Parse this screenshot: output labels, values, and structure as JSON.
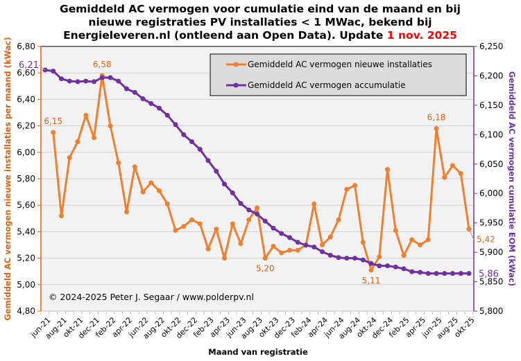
{
  "chart_data": {
    "type": "line",
    "title_lines": [
      "Gemiddeld  AC vermogen voor cumulatie  eind van de maand  en bij",
      "nieuwe registraties  PV installaties  < 1 MWac, bekend bij",
      "Energieleveren.nl  (ontleend aan Open Data). Update "
    ],
    "title_highlight": "1 nov. 2025",
    "xlabel": "Maand van registratie",
    "ylabel_left": "Gemiddeld AC vermogen nieuwe installaties per maand (kWac)",
    "ylabel_right": "Gemiddeld AC vermogen cumulatie EOM (kWac)",
    "ylim_left": [
      4.8,
      6.8
    ],
    "ylim_right": [
      5800,
      6250
    ],
    "yticks_left": [
      "4,80",
      "5,00",
      "5,20",
      "5,40",
      "5,60",
      "5,80",
      "6,00",
      "6,20",
      "6,40",
      "6,60",
      "6,80"
    ],
    "yticks_right": [
      "5,800",
      "5,850",
      "5,900",
      "5,950",
      "6,000",
      "6,050",
      "6,100",
      "6,150",
      "6,200",
      "6,250"
    ],
    "x_tick_labels": [
      "jun-21",
      "aug-21",
      "okt-21",
      "dec-21",
      "feb-22",
      "apr-22",
      "jun-22",
      "aug-22",
      "okt-22",
      "dec-22",
      "feb-23",
      "apr-23",
      "jun-23",
      "aug-23",
      "okt-23",
      "dec-23",
      "feb-24",
      "apr-24",
      "jun-24",
      "aug-24",
      "okt-24",
      "dec-24",
      "feb-25",
      "apr-25",
      "jun-25",
      "aug-25",
      "okt-25"
    ],
    "grid": true,
    "legend_position": "top-right",
    "copyright": "© 2024-2025  Peter J. Segaar / www.polderpv.nl",
    "series": [
      {
        "name": "Gemiddeld AC vermogen nieuwe installaties",
        "axis": "left",
        "color": "#f08030",
        "start_month_index": 1,
        "values": [
          6.15,
          5.52,
          5.96,
          6.08,
          6.28,
          6.11,
          6.58,
          6.2,
          5.92,
          5.55,
          5.89,
          5.7,
          5.77,
          5.71,
          5.61,
          5.41,
          5.44,
          5.49,
          5.46,
          5.27,
          5.42,
          5.2,
          5.46,
          5.31,
          5.49,
          5.58,
          5.2,
          5.29,
          5.24,
          5.26,
          5.26,
          5.3,
          5.61,
          5.3,
          5.36,
          5.49,
          5.72,
          5.75,
          5.32,
          5.11,
          5.21,
          5.87,
          5.41,
          5.22,
          5.34,
          5.3,
          5.34,
          6.18,
          5.81,
          5.9,
          5.84,
          5.42
        ],
        "annotations": [
          {
            "index": 0,
            "text": "6,15"
          },
          {
            "index": 6,
            "text": "6,58"
          },
          {
            "index": 26,
            "text": "5,20"
          },
          {
            "index": 39,
            "text": "5,11"
          },
          {
            "index": 47,
            "text": "6,18"
          },
          {
            "index": 51,
            "text": "5,42"
          }
        ]
      },
      {
        "name": "Gemiddeld AC vermogen accumulatie",
        "axis": "right",
        "color": "#7030a0",
        "start_month_index": 0,
        "values": [
          6210,
          6208,
          6195,
          6191,
          6190,
          6191,
          6190,
          6197,
          6197,
          6191,
          6178,
          6172,
          6161,
          6153,
          6145,
          6133,
          6117,
          6100,
          6088,
          6075,
          6056,
          6038,
          6016,
          6001,
          5983,
          5972,
          5965,
          5953,
          5941,
          5932,
          5925,
          5917,
          5912,
          5909,
          5901,
          5895,
          5891,
          5890,
          5890,
          5887,
          5881,
          5877,
          5877,
          5875,
          5872,
          5867,
          5866,
          5864,
          5864,
          5864,
          5864,
          5864,
          5864
        ],
        "annotations": [
          {
            "index": 0,
            "text": "6,21"
          },
          {
            "index": 52,
            "text": "5,86"
          }
        ]
      }
    ]
  },
  "colors": {
    "highlight": "#ff0000",
    "left_axis": "#e06010",
    "right_axis": "#7030a0",
    "plot_bg": "#f2f2f2"
  }
}
